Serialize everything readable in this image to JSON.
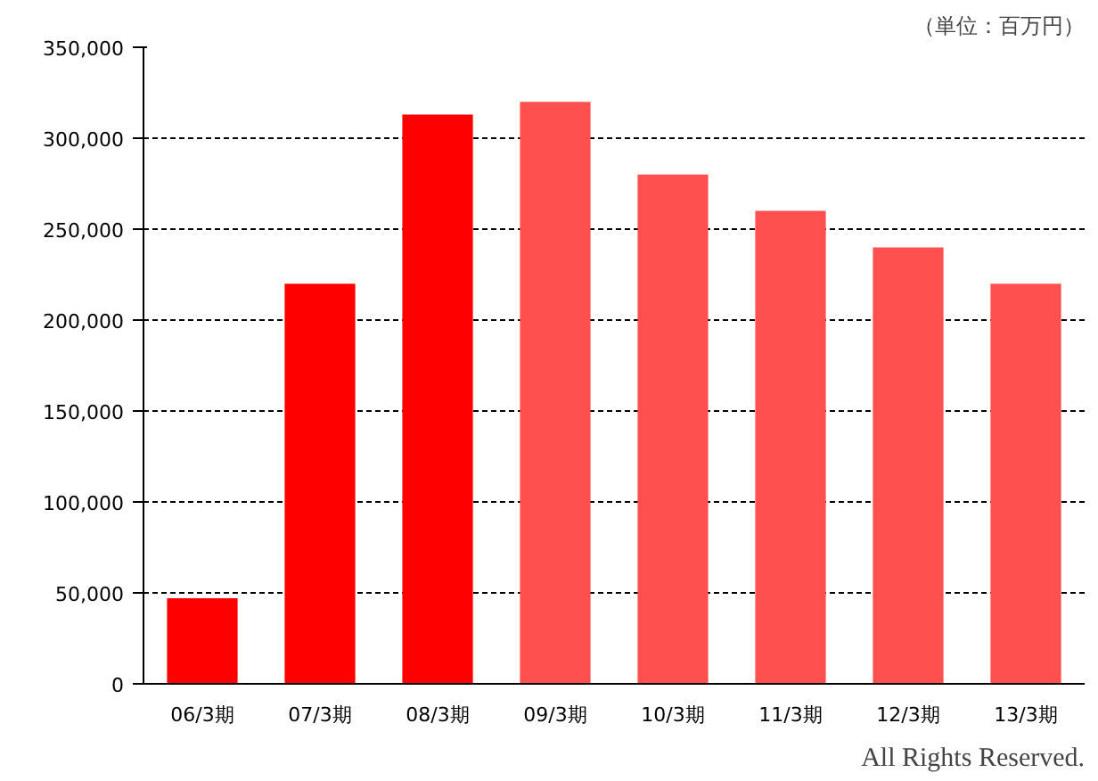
{
  "chart_data": {
    "type": "bar",
    "subtitle": "（単位：百万円）",
    "categories": [
      "06/3期",
      "07/3期",
      "08/3期",
      "09/3期",
      "10/3期",
      "11/3期",
      "12/3期",
      "13/3期"
    ],
    "values": [
      47000,
      220000,
      313000,
      320000,
      280000,
      260000,
      240000,
      220000
    ],
    "colors": [
      "#ff0000",
      "#ff0000",
      "#ff0000",
      "#ff5050",
      "#ff5050",
      "#ff5050",
      "#ff5050",
      "#ff5050"
    ],
    "ylim": [
      0,
      350000
    ],
    "yticks": [
      {
        "value": 0,
        "label": "0"
      },
      {
        "value": 50000,
        "label": "50,000"
      },
      {
        "value": 100000,
        "label": "100,000"
      },
      {
        "value": 150000,
        "label": "150,000"
      },
      {
        "value": 200000,
        "label": "200,000"
      },
      {
        "value": 250000,
        "label": "250,000"
      },
      {
        "value": 300000,
        "label": "300,000"
      },
      {
        "value": 350000,
        "label": "350,000"
      }
    ],
    "grid": "y",
    "annotations": [
      "All Rights Reserved."
    ]
  }
}
